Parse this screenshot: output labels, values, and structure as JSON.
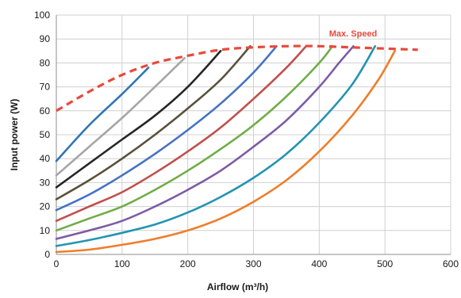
{
  "chart_data": {
    "type": "line",
    "title": "",
    "xlabel": "Airflow (m³/h)",
    "ylabel": "Input power (W)",
    "xlim": [
      0,
      600
    ],
    "ylim": [
      0,
      100
    ],
    "x_ticks": [
      "0",
      "100",
      "200",
      "300",
      "400",
      "500",
      "600"
    ],
    "y_ticks": [
      "0",
      "10",
      "20",
      "30",
      "40",
      "50",
      "60",
      "70",
      "80",
      "90",
      "100"
    ],
    "grid": true,
    "legend": "none",
    "annotations": [
      {
        "text": "Max. Speed",
        "x": 415,
        "y": 91,
        "color": "#e8493c"
      }
    ],
    "max_speed_curve": {
      "label": "Max. Speed",
      "color": "#e8493c",
      "dashed": true,
      "points": [
        [
          0,
          60
        ],
        [
          50,
          68
        ],
        [
          100,
          75
        ],
        [
          150,
          80
        ],
        [
          200,
          83
        ],
        [
          250,
          85.5
        ],
        [
          300,
          86.5
        ],
        [
          350,
          87
        ],
        [
          400,
          87
        ],
        [
          450,
          86.5
        ],
        [
          500,
          86
        ],
        [
          550,
          85.5
        ]
      ]
    },
    "series": [
      {
        "color": "#2e75b6",
        "points": [
          [
            0,
            39
          ],
          [
            50,
            54
          ],
          [
            100,
            67
          ],
          [
            140,
            78
          ]
        ]
      },
      {
        "color": "#a6a6a6",
        "points": [
          [
            0,
            33
          ],
          [
            50,
            45
          ],
          [
            100,
            57
          ],
          [
            150,
            70
          ],
          [
            195,
            82
          ]
        ]
      },
      {
        "color": "#262626",
        "points": [
          [
            0,
            28
          ],
          [
            50,
            38
          ],
          [
            100,
            48
          ],
          [
            150,
            58
          ],
          [
            200,
            70
          ],
          [
            250,
            85
          ]
        ]
      },
      {
        "color": "#59513b",
        "points": [
          [
            0,
            23
          ],
          [
            50,
            31
          ],
          [
            100,
            40
          ],
          [
            150,
            50
          ],
          [
            200,
            61
          ],
          [
            250,
            73
          ],
          [
            295,
            87
          ]
        ]
      },
      {
        "color": "#4472c4",
        "points": [
          [
            0,
            18.5
          ],
          [
            50,
            25
          ],
          [
            100,
            33
          ],
          [
            150,
            42
          ],
          [
            200,
            52
          ],
          [
            250,
            63
          ],
          [
            300,
            76
          ],
          [
            335,
            87
          ]
        ]
      },
      {
        "color": "#c0504d",
        "points": [
          [
            0,
            14
          ],
          [
            50,
            20
          ],
          [
            100,
            26
          ],
          [
            150,
            34
          ],
          [
            200,
            43
          ],
          [
            250,
            53
          ],
          [
            300,
            65
          ],
          [
            350,
            78
          ],
          [
            380,
            87
          ]
        ]
      },
      {
        "color": "#70ad47",
        "points": [
          [
            0,
            10
          ],
          [
            50,
            15
          ],
          [
            100,
            20
          ],
          [
            150,
            27
          ],
          [
            200,
            35
          ],
          [
            250,
            44
          ],
          [
            300,
            54
          ],
          [
            350,
            66
          ],
          [
            400,
            80
          ],
          [
            420,
            87
          ]
        ]
      },
      {
        "color": "#7d5ba6",
        "points": [
          [
            0,
            6.5
          ],
          [
            50,
            10
          ],
          [
            100,
            14
          ],
          [
            150,
            20
          ],
          [
            200,
            27
          ],
          [
            250,
            35
          ],
          [
            300,
            45
          ],
          [
            350,
            56
          ],
          [
            400,
            70
          ],
          [
            430,
            80
          ],
          [
            452,
            87
          ]
        ]
      },
      {
        "color": "#2494b3",
        "points": [
          [
            0,
            3.5
          ],
          [
            50,
            6
          ],
          [
            100,
            9
          ],
          [
            150,
            12.5
          ],
          [
            200,
            17.5
          ],
          [
            250,
            24
          ],
          [
            300,
            32
          ],
          [
            350,
            42
          ],
          [
            400,
            55
          ],
          [
            450,
            71
          ],
          [
            485,
            87
          ]
        ]
      },
      {
        "color": "#f07d2a",
        "points": [
          [
            0,
            1
          ],
          [
            50,
            2
          ],
          [
            100,
            4
          ],
          [
            150,
            6.5
          ],
          [
            200,
            10
          ],
          [
            250,
            15
          ],
          [
            300,
            22
          ],
          [
            350,
            31
          ],
          [
            400,
            43
          ],
          [
            450,
            58
          ],
          [
            490,
            73
          ],
          [
            515,
            85
          ]
        ]
      }
    ]
  }
}
